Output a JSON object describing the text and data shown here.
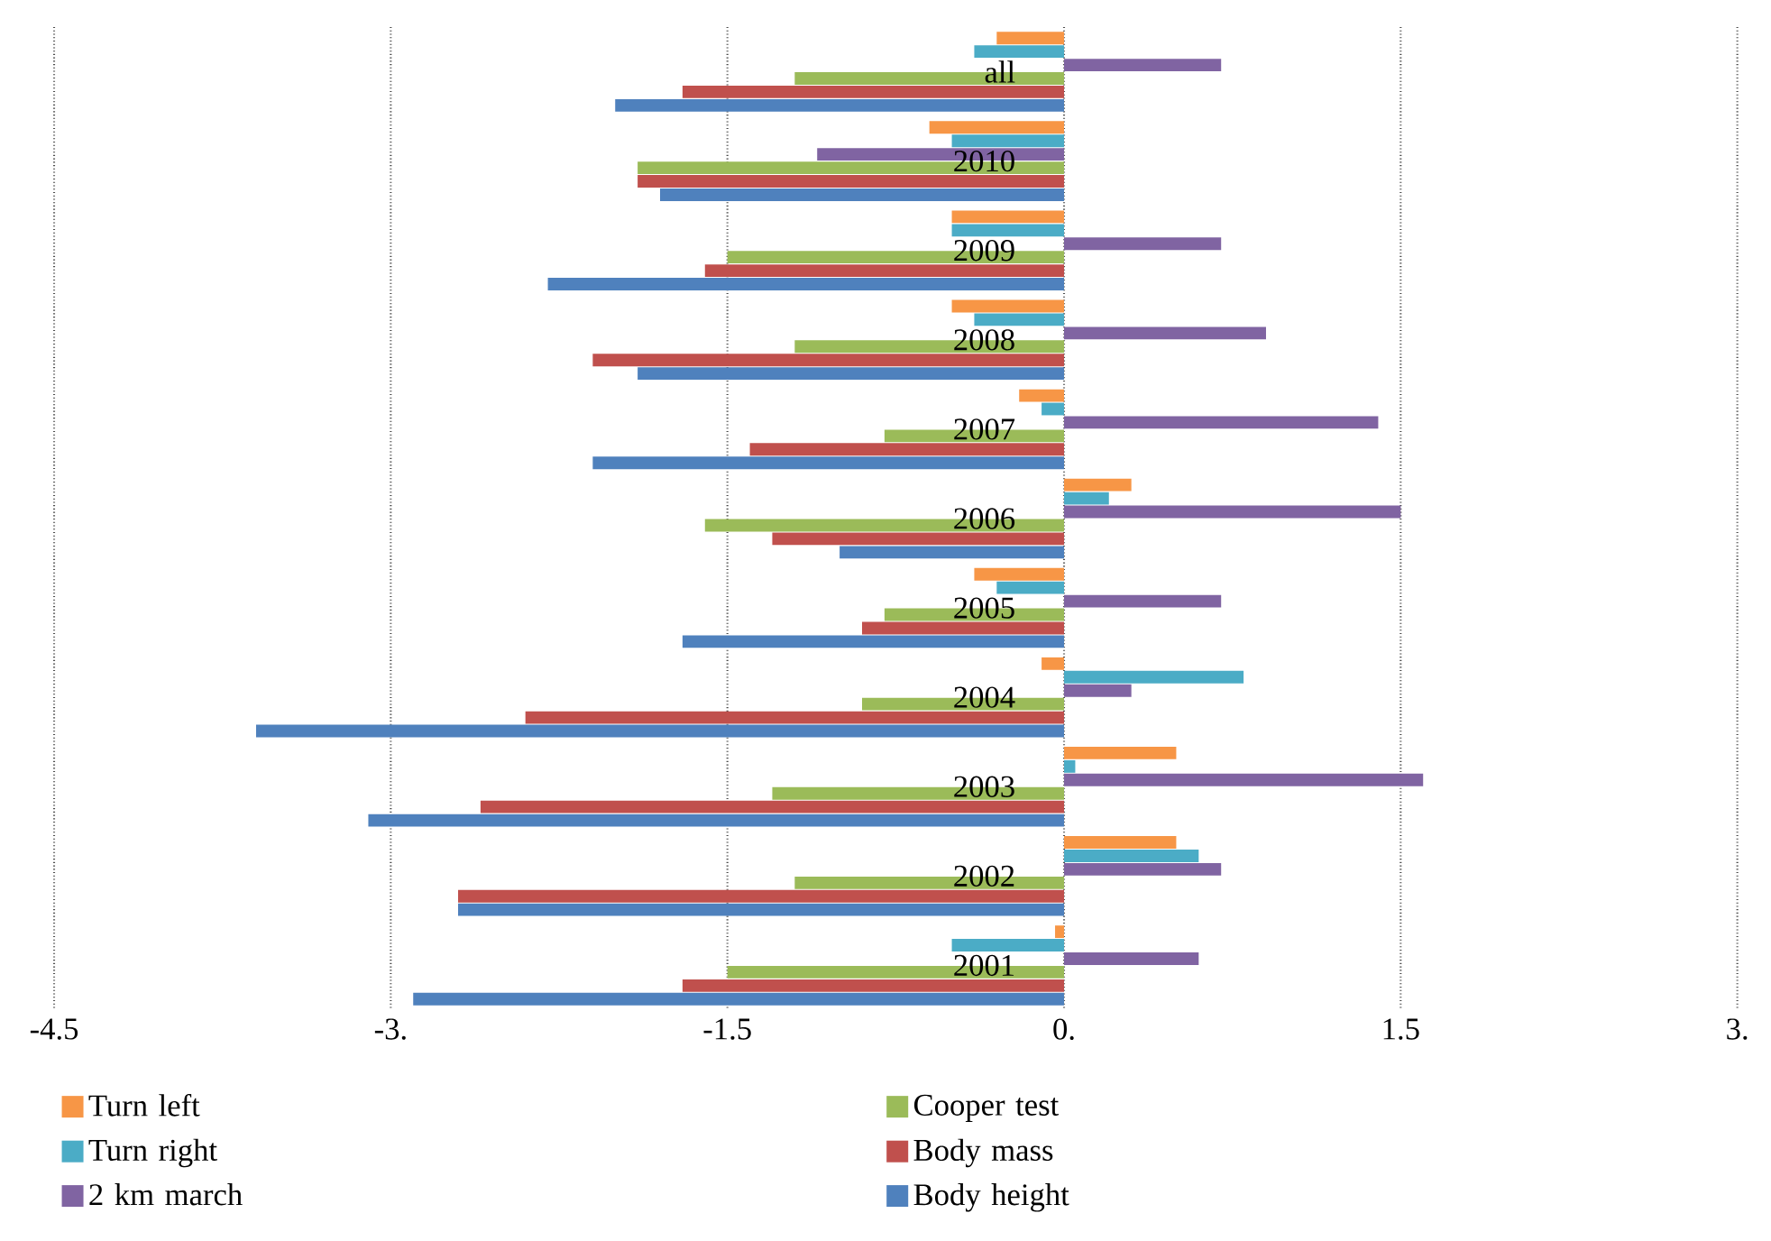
{
  "chart_data": {
    "type": "bar",
    "orientation": "horizontal",
    "categories": [
      "all",
      "2010",
      "2009",
      "2008",
      "2007",
      "2006",
      "2005",
      "2004",
      "2003",
      "2002",
      "2001"
    ],
    "series": [
      {
        "name": "Turn left",
        "color": "#f79646",
        "values": [
          -0.3,
          -0.6,
          -0.5,
          -0.5,
          -0.2,
          0.3,
          -0.4,
          -0.1,
          0.5,
          0.5,
          -0.04
        ]
      },
      {
        "name": "Turn right",
        "color": "#4bacc6",
        "values": [
          -0.4,
          -0.5,
          -0.5,
          -0.4,
          -0.1,
          0.2,
          -0.3,
          0.8,
          0.05,
          0.6,
          -0.5
        ]
      },
      {
        "name": "2 km march",
        "color": "#8064a2",
        "values": [
          0.7,
          -1.1,
          0.7,
          0.9,
          1.4,
          1.5,
          0.7,
          0.3,
          1.6,
          0.7,
          0.6
        ]
      },
      {
        "name": "Cooper test",
        "color": "#9bbb59",
        "values": [
          -1.2,
          -1.9,
          -1.5,
          -1.2,
          -0.8,
          -1.6,
          -0.8,
          -0.9,
          -1.3,
          -1.2,
          -1.5
        ]
      },
      {
        "name": "Body mass",
        "color": "#c0504d",
        "values": [
          -1.7,
          -1.9,
          -1.6,
          -2.1,
          -1.4,
          -1.3,
          -0.9,
          -2.4,
          -2.6,
          -2.7,
          -1.7
        ]
      },
      {
        "name": "Body height",
        "color": "#4f81bd",
        "values": [
          -2.0,
          -1.8,
          -2.3,
          -1.9,
          -2.1,
          -1.0,
          -1.7,
          -3.6,
          -3.1,
          -2.7,
          -2.9
        ]
      }
    ],
    "xlim": [
      -4.5,
      3
    ],
    "xticks": [
      {
        "value": -4.5,
        "label": "-4.5"
      },
      {
        "value": -3,
        "label": "-3."
      },
      {
        "value": -1.5,
        "label": "-1.5"
      },
      {
        "value": 0,
        "label": "0."
      },
      {
        "value": 1.5,
        "label": "1.5"
      },
      {
        "value": 3,
        "label": "3."
      }
    ],
    "grid": "x",
    "legend": "bottom"
  }
}
